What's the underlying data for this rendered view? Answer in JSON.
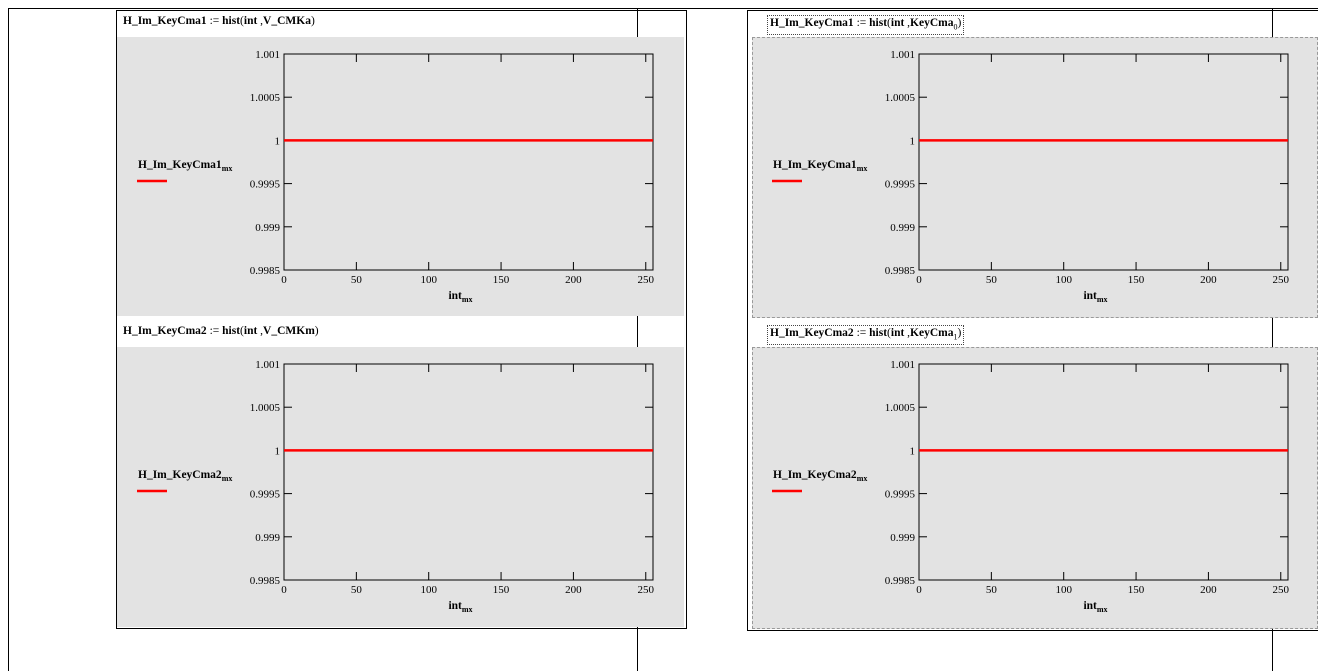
{
  "regions": [
    {
      "equations": [
        {
          "lhs": "H_Im_KeyCma1",
          "op": ":=",
          "func": "hist",
          "arg1": "int",
          "arg2": "V_CMKa",
          "arg2_sub": "",
          "boxed": false
        },
        {
          "lhs": "H_Im_KeyCma2",
          "op": ":=",
          "func": "hist",
          "arg1": "int",
          "arg2": "V_CMKm",
          "arg2_sub": "",
          "boxed": false
        }
      ]
    },
    {
      "equations": [
        {
          "lhs": "H_Im_KeyCma1",
          "op": ":=",
          "func": "hist",
          "arg1": "int",
          "arg2": "KeyCma",
          "arg2_sub": "0",
          "boxed": true
        },
        {
          "lhs": "H_Im_KeyCma2",
          "op": ":=",
          "func": "hist",
          "arg1": "int",
          "arg2": "KeyCma",
          "arg2_sub": "1",
          "boxed": true
        }
      ]
    }
  ],
  "chart_data": [
    {
      "type": "line",
      "ylabel": "H_Im_KeyCma1",
      "ylabel_sub": "mx",
      "xlabel": "int",
      "xlabel_sub": "mx",
      "xlim": [
        0,
        255
      ],
      "ylim": [
        0.9985,
        1.001
      ],
      "x_ticks": [
        "0",
        "50",
        "100",
        "150",
        "200",
        "250"
      ],
      "y_ticks": [
        "0.9985",
        "0.999",
        "0.9995",
        "1",
        "1.0005",
        "1.001"
      ],
      "series": [
        {
          "x": [
            0,
            255
          ],
          "y": [
            1,
            1
          ],
          "color": "#ff0000"
        }
      ],
      "grid": false
    },
    {
      "type": "line",
      "ylabel": "H_Im_KeyCma2",
      "ylabel_sub": "mx",
      "xlabel": "int",
      "xlabel_sub": "mx",
      "xlim": [
        0,
        255
      ],
      "ylim": [
        0.9985,
        1.001
      ],
      "x_ticks": [
        "0",
        "50",
        "100",
        "150",
        "200",
        "250"
      ],
      "y_ticks": [
        "0.9985",
        "0.999",
        "0.9995",
        "1",
        "1.0005",
        "1.001"
      ],
      "series": [
        {
          "x": [
            0,
            255
          ],
          "y": [
            1,
            1
          ],
          "color": "#ff0000"
        }
      ],
      "grid": false
    },
    {
      "type": "line",
      "ylabel": "H_Im_KeyCma1",
      "ylabel_sub": "mx",
      "xlabel": "int",
      "xlabel_sub": "mx",
      "xlim": [
        0,
        255
      ],
      "ylim": [
        0.9985,
        1.001
      ],
      "x_ticks": [
        "0",
        "50",
        "100",
        "150",
        "200",
        "250"
      ],
      "y_ticks": [
        "0.9985",
        "0.999",
        "0.9995",
        "1",
        "1.0005",
        "1.001"
      ],
      "series": [
        {
          "x": [
            0,
            255
          ],
          "y": [
            1,
            1
          ],
          "color": "#ff0000"
        }
      ],
      "grid": false
    },
    {
      "type": "line",
      "ylabel": "H_Im_KeyCma2",
      "ylabel_sub": "mx",
      "xlabel": "int",
      "xlabel_sub": "mx",
      "xlim": [
        0,
        255
      ],
      "ylim": [
        0.9985,
        1.001
      ],
      "x_ticks": [
        "0",
        "50",
        "100",
        "150",
        "200",
        "250"
      ],
      "y_ticks": [
        "0.9985",
        "0.999",
        "0.9995",
        "1",
        "1.0005",
        "1.001"
      ],
      "series": [
        {
          "x": [
            0,
            255
          ],
          "y": [
            1,
            1
          ],
          "color": "#ff0000"
        }
      ],
      "grid": false
    }
  ]
}
